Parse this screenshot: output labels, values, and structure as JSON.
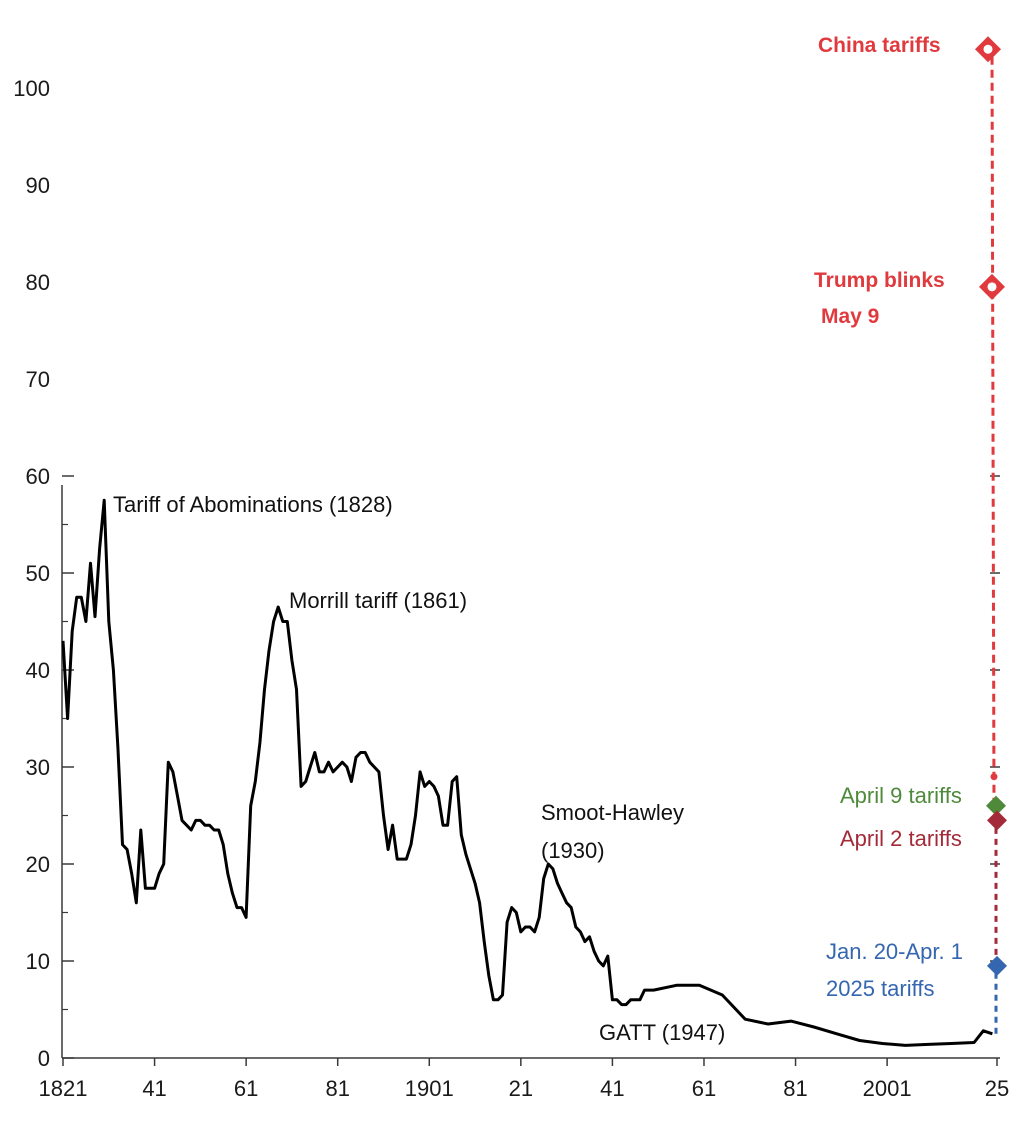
{
  "chart_data": {
    "type": "line",
    "title": "",
    "xlabel": "",
    "ylabel": "",
    "xlim": [
      1821,
      2025
    ],
    "ylim": [
      0,
      100
    ],
    "grid": false,
    "x_ticks": [
      {
        "value": 1821,
        "label": "1821"
      },
      {
        "value": 1841,
        "label": "41"
      },
      {
        "value": 1861,
        "label": "61"
      },
      {
        "value": 1881,
        "label": "81"
      },
      {
        "value": 1901,
        "label": "1901"
      },
      {
        "value": 1921,
        "label": "21"
      },
      {
        "value": 1941,
        "label": "41"
      },
      {
        "value": 1961,
        "label": "61"
      },
      {
        "value": 1981,
        "label": "81"
      },
      {
        "value": 2001,
        "label": "2001"
      },
      {
        "value": 2025,
        "label": "25"
      }
    ],
    "y_ticks": [
      {
        "value": 0,
        "label": "0"
      },
      {
        "value": 10,
        "label": "10"
      },
      {
        "value": 20,
        "label": "20"
      },
      {
        "value": 30,
        "label": "30"
      },
      {
        "value": 40,
        "label": "40"
      },
      {
        "value": 50,
        "label": "50"
      },
      {
        "value": 60,
        "label": "60"
      },
      {
        "value": 70,
        "label": "70"
      },
      {
        "value": 80,
        "label": "80"
      },
      {
        "value": 90,
        "label": "90"
      },
      {
        "value": 100,
        "label": "100"
      }
    ],
    "series": [
      {
        "color": "#000000",
        "x": [
          1821,
          1822,
          1823,
          1824,
          1825,
          1826,
          1827,
          1828,
          1829,
          1830,
          1831,
          1832,
          1833,
          1834,
          1835,
          1836,
          1837,
          1838,
          1839,
          1840,
          1841,
          1842,
          1843,
          1844,
          1845,
          1846,
          1847,
          1848,
          1849,
          1850,
          1851,
          1852,
          1853,
          1854,
          1855,
          1856,
          1857,
          1858,
          1859,
          1860,
          1861,
          1862,
          1863,
          1864,
          1865,
          1866,
          1867,
          1868,
          1869,
          1870,
          1871,
          1872,
          1873,
          1874,
          1875,
          1876,
          1877,
          1878,
          1879,
          1880,
          1881,
          1882,
          1883,
          1884,
          1885,
          1886,
          1887,
          1888,
          1889,
          1890,
          1891,
          1892,
          1893,
          1894,
          1895,
          1896,
          1897,
          1898,
          1899,
          1900,
          1901,
          1902,
          1903,
          1904,
          1905,
          1906,
          1907,
          1908,
          1909,
          1910,
          1911,
          1912,
          1913,
          1914,
          1915,
          1916,
          1917,
          1918,
          1919,
          1920,
          1921,
          1922,
          1923,
          1924,
          1925,
          1926,
          1927,
          1928,
          1929,
          1930,
          1931,
          1932,
          1933,
          1934,
          1935,
          1936,
          1937,
          1938,
          1939,
          1940,
          1941,
          1942,
          1943,
          1944,
          1945,
          1946,
          1947,
          1948,
          1950,
          1955,
          1960,
          1965,
          1970,
          1975,
          1980,
          1985,
          1990,
          1995,
          2000,
          2005,
          2010,
          2015,
          2020,
          2022,
          2024
        ],
        "values": [
          43,
          35,
          44,
          47.5,
          47.5,
          45,
          51,
          45.5,
          52.5,
          57.5,
          45,
          40,
          32,
          22,
          21.5,
          19,
          16,
          23.5,
          17.5,
          17.5,
          17.5,
          19,
          20,
          30.5,
          29.5,
          27,
          24.5,
          24,
          23.5,
          24.5,
          24.5,
          24,
          24,
          23.5,
          23.5,
          22,
          19,
          17,
          15.5,
          15.5,
          14.5,
          26,
          28.5,
          32.5,
          38,
          42,
          45,
          46.5,
          45,
          45,
          41,
          38,
          28,
          28.5,
          30,
          31.5,
          29.5,
          29.5,
          30.5,
          29.5,
          30,
          30.5,
          30,
          28.5,
          31,
          31.5,
          31.5,
          30.5,
          30,
          29.5,
          25,
          21.5,
          24,
          20.5,
          20.5,
          20.5,
          22,
          25,
          29.5,
          28,
          28.5,
          28,
          27,
          24,
          24,
          28.5,
          29,
          23,
          21,
          19.5,
          18,
          16,
          12,
          8.5,
          6,
          6,
          6.5,
          14,
          15.5,
          15,
          13,
          13.5,
          13.5,
          13,
          14.5,
          18.5,
          20,
          19.5,
          18,
          17,
          16,
          15.5,
          13.5,
          13,
          12,
          12.5,
          11,
          10,
          9.5,
          10.5,
          6,
          6,
          5.5,
          5.5,
          6,
          6,
          6,
          7,
          7,
          7.5,
          7.5,
          6.5,
          4,
          3.5,
          3.8,
          3.2,
          2.5,
          1.8,
          1.5,
          1.3,
          1.4,
          1.5,
          1.6,
          2.8,
          2.5
        ]
      }
    ],
    "annotations": [
      {
        "text": "Tariff of Abominations (1828)",
        "color": "#111111"
      },
      {
        "text": "Morrill tariff (1861)",
        "color": "#111111"
      },
      {
        "text": "Smoot-Hawley",
        "color": "#111111"
      },
      {
        "text": "(1930)",
        "color": "#111111"
      },
      {
        "text": "GATT (1947)",
        "color": "#111111"
      },
      {
        "text": "China tariffs",
        "color": "#e03a3e"
      },
      {
        "text": "Trump blinks",
        "color": "#e03a3e"
      },
      {
        "text": "May 9",
        "color": "#e03a3e"
      },
      {
        "text": "April 9 tariffs",
        "color": "#4e8a3a"
      },
      {
        "text": "April 2 tariffs",
        "color": "#a32b39"
      },
      {
        "text": "Jan. 20-Apr. 1",
        "color": "#3566b0"
      },
      {
        "text": "2025 tariffs",
        "color": "#3566b0"
      }
    ],
    "markers": [
      {
        "name": "China tariffs",
        "value": 104,
        "color": "#e03a3e",
        "shape": "diamond-hollow"
      },
      {
        "name": "Trump blinks May 9",
        "value": 79.5,
        "color": "#e03a3e",
        "shape": "diamond-hollow"
      },
      {
        "name": "April 9 tariffs",
        "value": 26,
        "color": "#4e8a3a",
        "shape": "diamond"
      },
      {
        "name": "April 2 tariffs",
        "value": 24.5,
        "color": "#a32b39",
        "shape": "diamond"
      },
      {
        "name": "Jan. 20-Apr. 1 2025 tariffs",
        "value": 9.5,
        "color": "#3566b0",
        "shape": "diamond"
      }
    ]
  }
}
